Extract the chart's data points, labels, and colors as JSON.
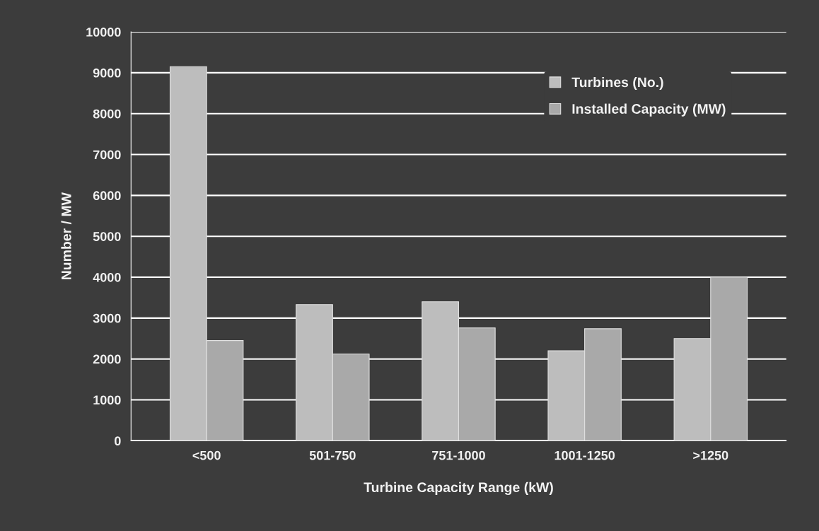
{
  "chart_data": {
    "type": "bar",
    "xlabel": "Turbine Capacity Range (kW)",
    "ylabel": "Number / MW",
    "categories": [
      "<500",
      "501-750",
      "751-1000",
      "1001-1250",
      ">1250"
    ],
    "series": [
      {
        "name": "Turbines (No.)",
        "color": "#bdbdbd",
        "values": [
          9150,
          3330,
          3400,
          2200,
          2500
        ]
      },
      {
        "name": "Installed Capacity (MW)",
        "color": "#a9a9a9",
        "values": [
          2450,
          2120,
          2760,
          2740,
          4000
        ]
      }
    ],
    "ylim": [
      0,
      10000
    ],
    "yticks": [
      0,
      1000,
      2000,
      3000,
      4000,
      5000,
      6000,
      7000,
      8000,
      9000,
      10000
    ],
    "grid": "y",
    "legend": "top right"
  }
}
